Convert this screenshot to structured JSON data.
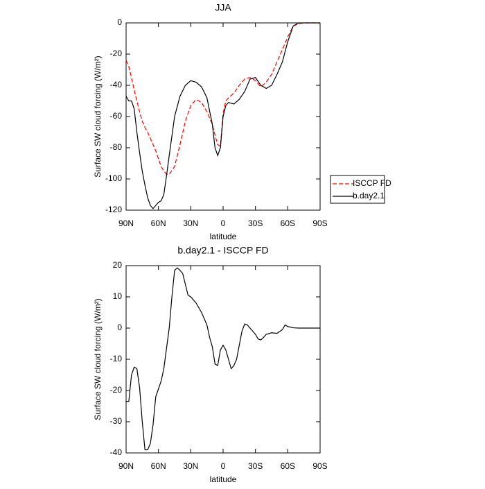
{
  "chart_data": [
    {
      "type": "line",
      "title": "JJA",
      "x_label": "latitude",
      "y_label": "Surface SW cloud forcing (W/m²)",
      "x": [
        90,
        87.5,
        85,
        82.5,
        80,
        77.5,
        75,
        72.5,
        70,
        67.5,
        65,
        62.5,
        60,
        57.5,
        55,
        52.5,
        50,
        45,
        40,
        35,
        30,
        25,
        20,
        15,
        10,
        7.5,
        5,
        2.5,
        0,
        -2.5,
        -5,
        -10,
        -15,
        -20,
        -25,
        -30,
        -35,
        -40,
        -45,
        -50,
        -55,
        -60,
        -65,
        -70,
        -75,
        -80,
        -90
      ],
      "xlim": [
        90,
        -90
      ],
      "xticks": [
        {
          "value": 90,
          "label": "90N"
        },
        {
          "value": 60,
          "label": "60N"
        },
        {
          "value": 30,
          "label": "30N"
        },
        0,
        {
          "value": -30,
          "label": "30S"
        },
        {
          "value": -60,
          "label": "60S"
        },
        {
          "value": -90,
          "label": "90S"
        }
      ],
      "ylim": [
        -120,
        0
      ],
      "yticks": [
        -120,
        -100,
        -80,
        -60,
        -40,
        -20,
        0
      ],
      "legend": "right",
      "series": [
        {
          "name": "ISCCP FD",
          "color": "#ff0000",
          "dashed": true,
          "values": [
            -24,
            -28,
            -35,
            -43,
            -50,
            -57,
            -63,
            -67,
            -70,
            -74,
            -78,
            -82,
            -87,
            -92,
            -95,
            -97,
            -97,
            -92,
            -78,
            -63,
            -53,
            -49,
            -51,
            -57,
            -65,
            -72,
            -78,
            -79,
            -58,
            -50,
            -48,
            -45,
            -40,
            -36,
            -35,
            -37,
            -41,
            -38,
            -33,
            -25,
            -17,
            -9,
            -2,
            -0.5,
            0,
            0,
            0
          ]
        },
        {
          "name": "b.day2.1",
          "color": "#000000",
          "dashed": false,
          "values": [
            -47,
            -50,
            -50,
            -55,
            -70,
            -83,
            -95,
            -104,
            -112,
            -117,
            -119,
            -117,
            -115,
            -114,
            -110,
            -98,
            -85,
            -60,
            -47,
            -40,
            -37,
            -38,
            -41,
            -48,
            -65,
            -80,
            -85,
            -80,
            -60,
            -53,
            -51,
            -52,
            -49,
            -44,
            -36,
            -35,
            -40,
            -42,
            -40,
            -33,
            -25,
            -12,
            -2,
            0,
            0,
            0,
            0
          ]
        }
      ]
    },
    {
      "type": "line",
      "title": "b.day2.1 - ISCCP FD",
      "x_label": "latitude",
      "y_label": "Surface SW cloud forcing (W/m²)",
      "x": [
        90,
        87.5,
        85,
        82.5,
        80,
        77.5,
        75,
        72.5,
        70,
        67.5,
        65,
        62.5,
        57.5,
        55,
        50,
        47.5,
        45,
        42.5,
        40,
        37.5,
        35,
        32.5,
        30,
        27.5,
        25,
        20,
        15,
        12.5,
        10,
        7.5,
        5,
        2.5,
        0,
        -2.5,
        -5,
        -7.5,
        -10,
        -12.5,
        -15,
        -17.5,
        -20,
        -22.5,
        -25,
        -30,
        -32.5,
        -35,
        -37.5,
        -40,
        -45,
        -50,
        -55,
        -57.5,
        -60,
        -65,
        -70,
        -80,
        -90
      ],
      "xlim": [
        90,
        -90
      ],
      "xticks": [
        {
          "value": 90,
          "label": "90N"
        },
        {
          "value": 60,
          "label": "60N"
        },
        {
          "value": 30,
          "label": "30N"
        },
        0,
        {
          "value": -30,
          "label": "30S"
        },
        {
          "value": -60,
          "label": "60S"
        },
        {
          "value": -90,
          "label": "90S"
        }
      ],
      "ylim": [
        -40,
        20
      ],
      "yticks": [
        -40,
        -30,
        -20,
        -10,
        0,
        10,
        20
      ],
      "series": [
        {
          "color": "#000000",
          "dashed": false,
          "values": [
            -23.5,
            -23.5,
            -15,
            -12.5,
            -13,
            -19,
            -30,
            -39,
            -39,
            -37,
            -31,
            -22,
            -17,
            -13,
            0,
            10,
            18.5,
            19.3,
            18.5,
            17.5,
            14,
            10.5,
            10,
            9,
            8,
            5,
            1,
            -3,
            -6,
            -11.5,
            -12,
            -7,
            -5.5,
            -7,
            -10,
            -13,
            -12,
            -10,
            -5.5,
            -1,
            1.3,
            1,
            0,
            -2,
            -3.5,
            -3.8,
            -3,
            -2,
            -1.5,
            -1.7,
            -0.5,
            1,
            0.5,
            0.1,
            0,
            0,
            0
          ]
        }
      ]
    }
  ]
}
